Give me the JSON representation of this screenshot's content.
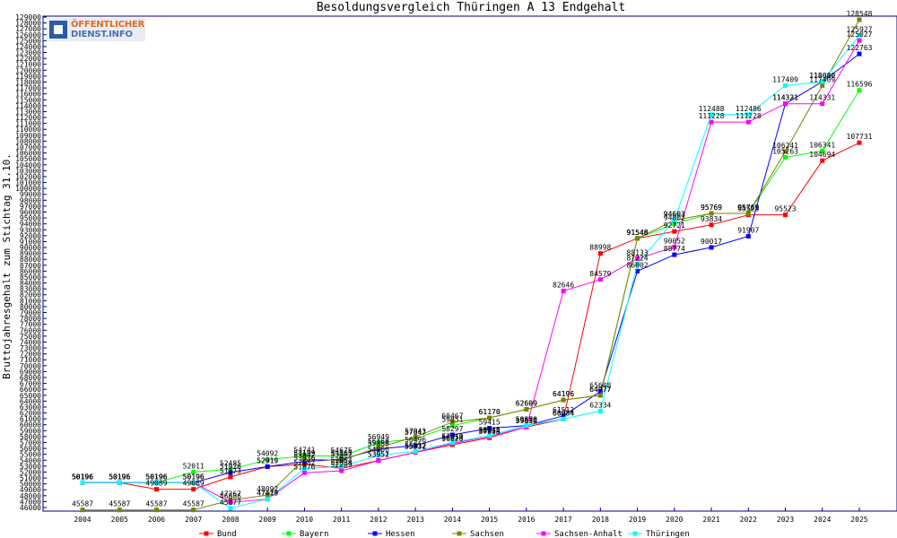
{
  "chart_data": {
    "type": "line",
    "title": "Besoldungsvergleich Thüringen A 13 Endgehalt",
    "xlabel": "",
    "ylabel": "Bruttojahresgehalt zum Stichtag 31.10.",
    "categories": [
      "2004",
      "2005",
      "2006",
      "2007",
      "2008",
      "2009",
      "2010",
      "2011",
      "2012",
      "2013",
      "2014",
      "2015",
      "2016",
      "2017",
      "2018",
      "2019",
      "2020",
      "2021",
      "2022",
      "2023",
      "2024",
      "2025"
    ],
    "ylim": [
      46000,
      129000
    ],
    "ytick_step": 1000,
    "grid": false,
    "legend_position": "bottom",
    "series": [
      {
        "name": "Bund",
        "color": "#ff0000",
        "values": [
          50196,
          50196,
          49089,
          49089,
          51173,
          52919,
          53336,
          52634,
          53952,
          55332,
          56626,
          57808,
          59630,
          60984,
          88998,
          91546,
          92721,
          93834,
          95523,
          95523,
          104694,
          107731
        ]
      },
      {
        "name": "Bayern",
        "color": "#00ff00",
        "values": [
          50196,
          50196,
          50196,
          52011,
          52485,
          54092,
          54741,
          54675,
          56949,
          57647,
          59851,
          61170,
          62609,
          64196,
          64977,
          91548,
          94002,
          95769,
          95769,
          105263,
          106341,
          116596
        ]
      },
      {
        "name": "Hessen",
        "color": "#0000ff",
        "values": [
          50196,
          50196,
          50196,
          50196,
          51926,
          52919,
          53802,
          54165,
          55888,
          56496,
          58297,
          59415,
          59870,
          61512,
          65648,
          86002,
          88774,
          90017,
          91907,
          114321,
          118080,
          122763
        ]
      },
      {
        "name": "Sachsen",
        "color": "#808000",
        "values": [
          45587,
          45587,
          45587,
          45587,
          47267,
          48092,
          54199,
          53987,
          56168,
          57941,
          60467,
          61170,
          62609,
          64196,
          64977,
          91548,
          94603,
          95769,
          95769,
          106241,
          117409,
          128548
        ]
      },
      {
        "name": "Sachsen-Anhalt",
        "color": "#ff00ff",
        "values": [
          50196,
          50196,
          50196,
          50196,
          46886,
          47413,
          51876,
          52209,
          53951,
          55332,
          56854,
          58014,
          59630,
          82646,
          84579,
          88133,
          90052,
          111228,
          111228,
          114331,
          114331,
          125027
        ]
      },
      {
        "name": "Thüringen",
        "color": "#00ffff",
        "values": [
          50196,
          50196,
          50196,
          50196,
          45877,
          47429,
          52582,
          52964,
          54806,
          55512,
          57010,
          58145,
          59880,
          60984,
          62334,
          87224,
          94603,
          112488,
          112486,
          117409,
          118080,
          125927
        ]
      }
    ]
  },
  "logo": {
    "line1": "ÖFFENTLICHER",
    "line2": "DIENST.INFO"
  }
}
